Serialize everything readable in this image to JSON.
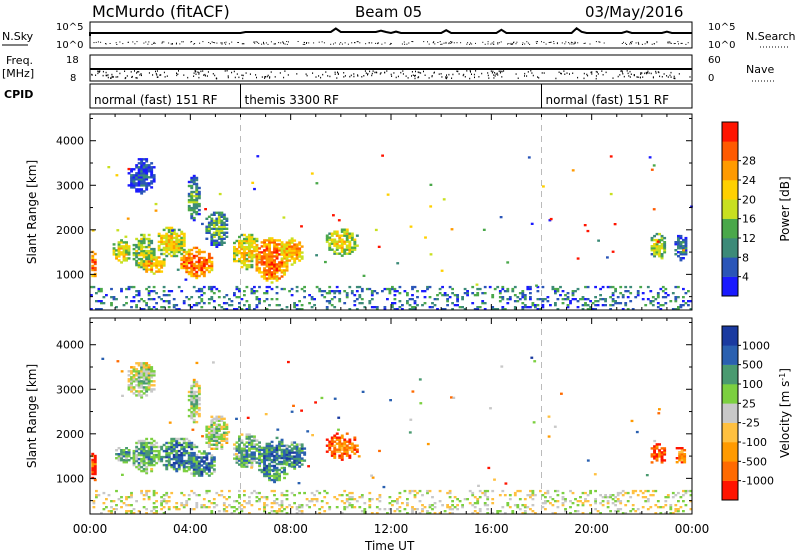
{
  "header": {
    "station": "McMurdo (fitACF)",
    "beam": "Beam 05",
    "date": "03/May/2016"
  },
  "summary_panels": {
    "nsky_label": "N.Sky",
    "nsearch_label": "N.Search",
    "noise_ticks": [
      "10^5",
      "10^0"
    ],
    "freq_label": "Freq.",
    "freq_unit": "[MHz]",
    "freq_ticks": [
      "18",
      "8"
    ],
    "nave_label": "Nave",
    "nave_ticks": [
      "60",
      "0"
    ],
    "cpid_label": "CPID",
    "cpid_segments": [
      {
        "label": "normal (fast) 151 RF",
        "start_hour": 0,
        "end_hour": 6
      },
      {
        "label": "themis 3300 RF",
        "start_hour": 6,
        "end_hour": 18
      },
      {
        "label": "normal (fast) 151 RF",
        "start_hour": 18,
        "end_hour": 24
      }
    ]
  },
  "chart_data": [
    {
      "type": "heatmap",
      "name": "power",
      "ylabel": "Slant Range [km]",
      "yticks": [
        1000,
        2000,
        3000,
        4000
      ],
      "ylim": [
        200,
        4600
      ],
      "xlim": [
        0,
        24
      ],
      "colorbar_label": "Power [dB]",
      "colorbar_ticks": [
        "4",
        "8",
        "12",
        "16",
        "20",
        "24",
        "28"
      ],
      "colorbar_colors": [
        "#1a1aff",
        "#2a55b8",
        "#3c8a78",
        "#4aa84a",
        "#c8e020",
        "#ffd000",
        "#ff9a00",
        "#ff5a00",
        "#ff1400"
      ],
      "blobs": [
        {
          "hour": 0.1,
          "range": 1250,
          "dh": 0.15,
          "dr": 350,
          "level": 7
        },
        {
          "hour": 1.2,
          "range": 1500,
          "dh": 0.4,
          "dr": 250,
          "level": 5
        },
        {
          "hour": 2.1,
          "range": 1500,
          "dh": 0.5,
          "dr": 400,
          "level": 4
        },
        {
          "hour": 2.5,
          "range": 1200,
          "dh": 0.5,
          "dr": 200,
          "level": 6
        },
        {
          "hour": 3.2,
          "range": 1700,
          "dh": 0.6,
          "dr": 350,
          "level": 5
        },
        {
          "hour": 4.2,
          "range": 1250,
          "dh": 0.7,
          "dr": 350,
          "level": 7
        },
        {
          "hour": 5.0,
          "range": 2000,
          "dh": 0.5,
          "dr": 400,
          "level": 3
        },
        {
          "hour": 6.2,
          "range": 1500,
          "dh": 0.6,
          "dr": 400,
          "level": 5
        },
        {
          "hour": 7.2,
          "range": 1300,
          "dh": 0.7,
          "dr": 500,
          "level": 7
        },
        {
          "hour": 8.0,
          "range": 1500,
          "dh": 0.5,
          "dr": 300,
          "level": 6
        },
        {
          "hour": 10.0,
          "range": 1700,
          "dh": 0.7,
          "dr": 300,
          "level": 5
        },
        {
          "hour": 22.6,
          "range": 1600,
          "dh": 0.35,
          "dr": 300,
          "level": 4
        },
        {
          "hour": 23.5,
          "range": 1600,
          "dh": 0.3,
          "dr": 300,
          "level": 2
        },
        {
          "hour": 2.0,
          "range": 3200,
          "dh": 0.6,
          "dr": 400,
          "level": 1
        },
        {
          "hour": 4.1,
          "range": 2700,
          "dh": 0.3,
          "dr": 500,
          "level": 3
        }
      ]
    },
    {
      "type": "heatmap",
      "name": "velocity",
      "ylabel": "Slant Range [km]",
      "yticks": [
        1000,
        2000,
        3000,
        4000
      ],
      "ylim": [
        200,
        4600
      ],
      "xlim": [
        0,
        24
      ],
      "colorbar_label": "Velocity [m s",
      "colorbar_label_sup": "-1",
      "colorbar_label_end": "]",
      "colorbar_ticks": [
        "-1000",
        "-500",
        "-100",
        "-25",
        "25",
        "100",
        "500",
        "1000"
      ],
      "colorbar_colors": [
        "#ff1400",
        "#ff6a00",
        "#ff9a00",
        "#ffc040",
        "#c8c8c8",
        "#7cd040",
        "#4a9a70",
        "#2a60b0",
        "#1a3aa0"
      ],
      "blobs": [
        {
          "hour": 0.1,
          "range": 1250,
          "dh": 0.15,
          "dr": 350,
          "level": 1
        },
        {
          "hour": 1.3,
          "range": 1500,
          "dh": 0.4,
          "dr": 200,
          "level": 6
        },
        {
          "hour": 2.2,
          "range": 1500,
          "dh": 0.6,
          "dr": 400,
          "level": 6
        },
        {
          "hour": 3.5,
          "range": 1500,
          "dh": 0.8,
          "dr": 400,
          "level": 7
        },
        {
          "hour": 4.4,
          "range": 1300,
          "dh": 0.6,
          "dr": 300,
          "level": 7
        },
        {
          "hour": 5.0,
          "range": 2000,
          "dh": 0.5,
          "dr": 400,
          "level": 5
        },
        {
          "hour": 6.2,
          "range": 1600,
          "dh": 0.6,
          "dr": 400,
          "level": 6
        },
        {
          "hour": 7.3,
          "range": 1400,
          "dh": 0.7,
          "dr": 500,
          "level": 7
        },
        {
          "hour": 8.1,
          "range": 1500,
          "dh": 0.5,
          "dr": 300,
          "level": 7
        },
        {
          "hour": 10.0,
          "range": 1700,
          "dh": 0.7,
          "dr": 300,
          "level": 2
        },
        {
          "hour": 22.6,
          "range": 1500,
          "dh": 0.35,
          "dr": 250,
          "level": 1
        },
        {
          "hour": 23.5,
          "range": 1500,
          "dh": 0.25,
          "dr": 200,
          "level": 2
        },
        {
          "hour": 2.0,
          "range": 3200,
          "dh": 0.6,
          "dr": 400,
          "level": 5
        },
        {
          "hour": 4.1,
          "range": 2700,
          "dh": 0.3,
          "dr": 500,
          "level": 5
        }
      ]
    }
  ],
  "x_axis": {
    "tick_labels": [
      "00:00",
      "04:00",
      "08:00",
      "12:00",
      "16:00",
      "20:00",
      "00:00"
    ],
    "tick_hours": [
      0,
      4,
      8,
      12,
      16,
      20,
      24
    ],
    "title": "Time UT"
  },
  "cpid_boundaries_hours": [
    6,
    18
  ]
}
